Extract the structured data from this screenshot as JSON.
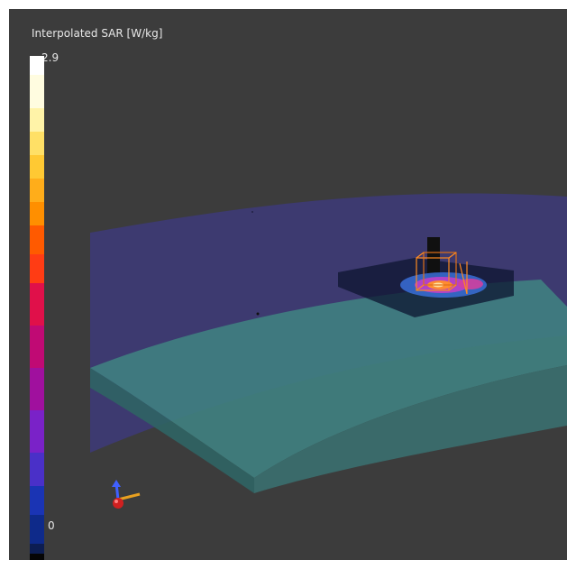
{
  "colorbar": {
    "title": "Interpolated SAR [W/kg]",
    "max_label": "2.9",
    "min_label": "0",
    "max_value": 2.9,
    "min_value": 0,
    "colors": [
      "#ffffff",
      "#fffce0",
      "#fff3a8",
      "#ffe066",
      "#ffc933",
      "#ffad1a",
      "#ff8f00",
      "#ff5a00",
      "#ff3c14",
      "#e0104a",
      "#c00a74",
      "#a0109e",
      "#7a22c8",
      "#4a30c8",
      "#1a34b4",
      "#0e2a8a",
      "#0c1d52",
      "#050505"
    ],
    "bands": [
      0.04,
      0.07,
      0.05,
      0.05,
      0.05,
      0.05,
      0.05,
      0.06,
      0.06,
      0.09,
      0.09,
      0.09,
      0.09,
      0.07,
      0.06,
      0.06,
      0.02,
      0.04
    ]
  },
  "scene": {
    "background": "#3c3c3c",
    "plane_color": "#3d3a73",
    "phantom_color": "#3d8585",
    "phantom_side_color": "#2e6a6a",
    "hotspot_colors": [
      "#3a6ed8",
      "#c040c8",
      "#ff8c30",
      "#ffe0a0"
    ]
  },
  "triad": {
    "x_color": "#e8a020",
    "y_color": "#4060ff",
    "z_color": "#d02020"
  }
}
